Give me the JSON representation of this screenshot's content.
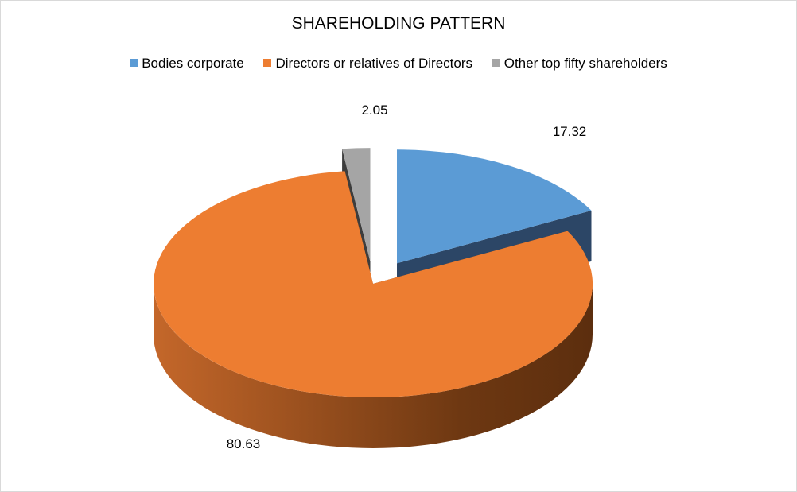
{
  "chart_data": {
    "type": "pie",
    "style": "3d-exploded",
    "title": "SHAREHOLDING PATTERN",
    "categories": [
      "Bodies corporate",
      "Directors or relatives of Directors",
      "Other top fifty shareholders"
    ],
    "values": [
      17.32,
      80.63,
      2.05
    ],
    "data_labels": [
      "17.32",
      "80.63",
      "2.05"
    ],
    "colors": [
      "#5b9bd5",
      "#ed7d31",
      "#a5a5a5"
    ],
    "side_colors": [
      "#2c4666",
      "#7a3f14",
      "#3d3d3d"
    ],
    "legend_position": "top",
    "exploded": [
      true,
      false,
      true
    ]
  }
}
